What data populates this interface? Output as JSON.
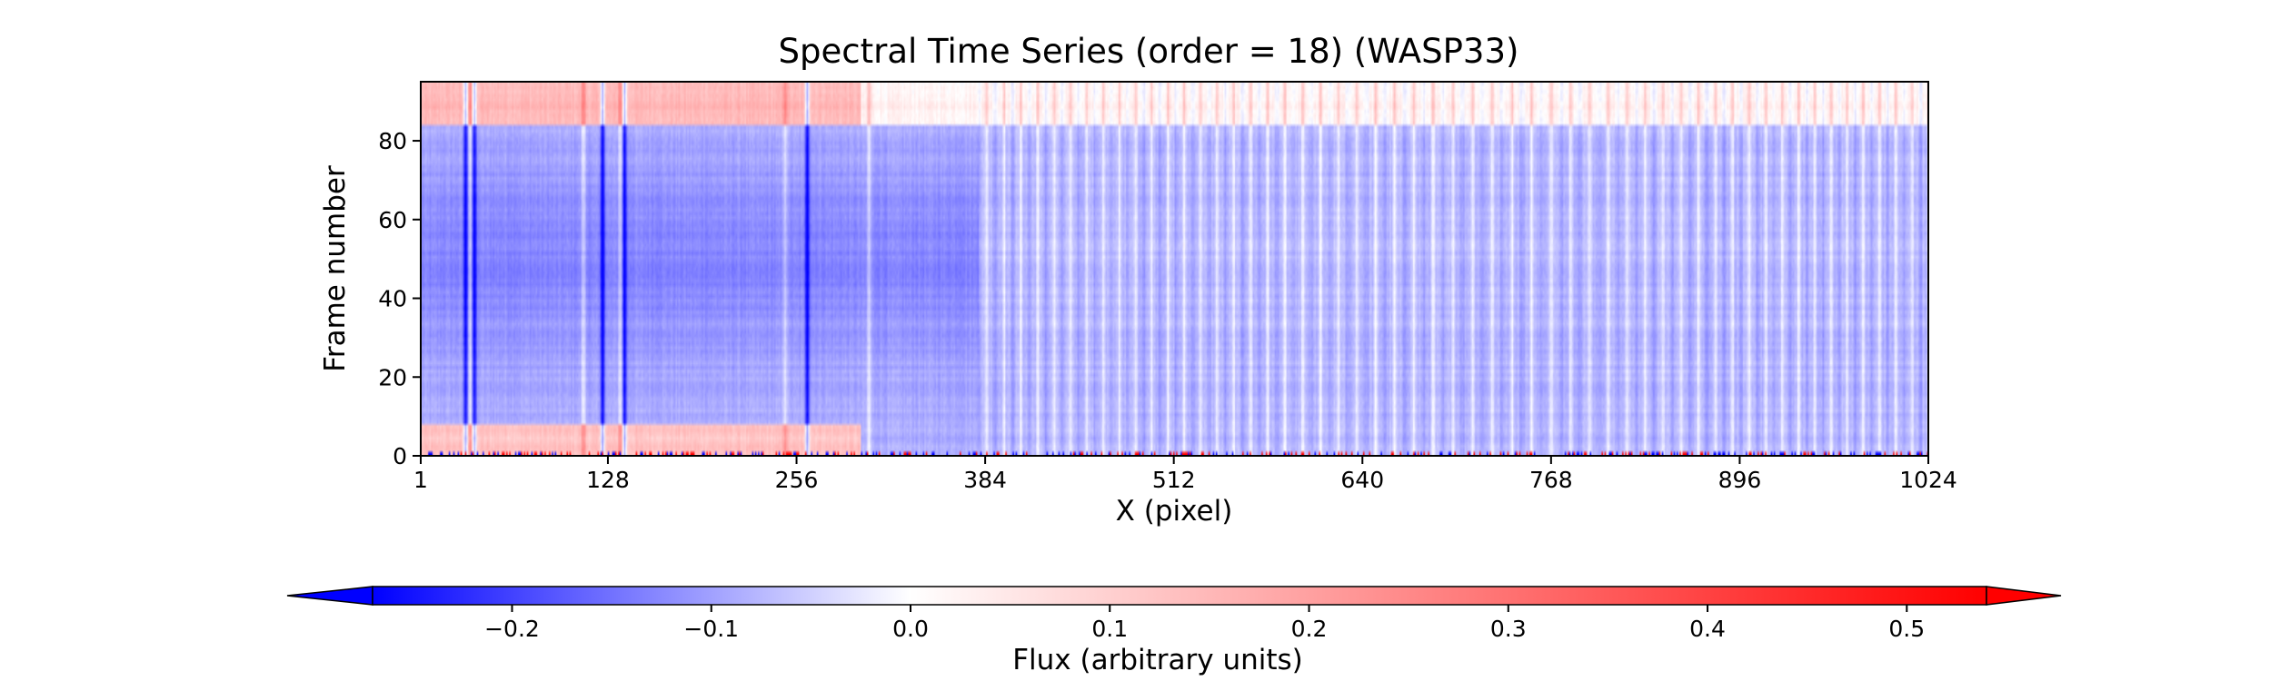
{
  "chart_data": {
    "type": "heatmap",
    "title": "Spectral Time Series (order = 18) (WASP33)",
    "xlabel": "X (pixel)",
    "ylabel": "Frame number",
    "xlim": [
      1,
      1024
    ],
    "ylim": [
      0,
      95
    ],
    "x_ticks": [
      "1",
      "128",
      "256",
      "384",
      "512",
      "640",
      "768",
      "896",
      "1024"
    ],
    "x_tick_values": [
      1,
      128,
      256,
      384,
      512,
      640,
      768,
      896,
      1024
    ],
    "y_ticks": [
      "0",
      "20",
      "40",
      "60",
      "80"
    ],
    "y_tick_values": [
      0,
      20,
      40,
      60,
      80
    ],
    "n_frames": 95,
    "grid": false,
    "colormap": "bwr",
    "colorbar": {
      "label": "Flux (arbitrary units)",
      "orientation": "horizontal",
      "location": "bottom",
      "vmin": -0.27,
      "vmax": 0.54,
      "ticks": [
        "−0.2",
        "−0.1",
        "0.0",
        "0.1",
        "0.2",
        "0.3",
        "0.4",
        "0.5"
      ],
      "tick_values": [
        -0.2,
        -0.1,
        0.0,
        0.1,
        0.2,
        0.3,
        0.4,
        0.5
      ],
      "extend": "both"
    },
    "features": {
      "absorption_columns_x": [
        31,
        34,
        37,
        111,
        124,
        136,
        139,
        248,
        263,
        305
      ],
      "top_band_frames": [
        84,
        95
      ],
      "top_band_x_range": [
        1,
        300
      ],
      "bottom_band_frames": [
        0,
        8
      ],
      "bottom_band_x_range": [
        1,
        300
      ],
      "dense_lines_x_range": [
        380,
        1024
      ]
    },
    "colors": {
      "low": "#0000ff",
      "mid": "#ffffff",
      "high": "#ff0000"
    }
  }
}
